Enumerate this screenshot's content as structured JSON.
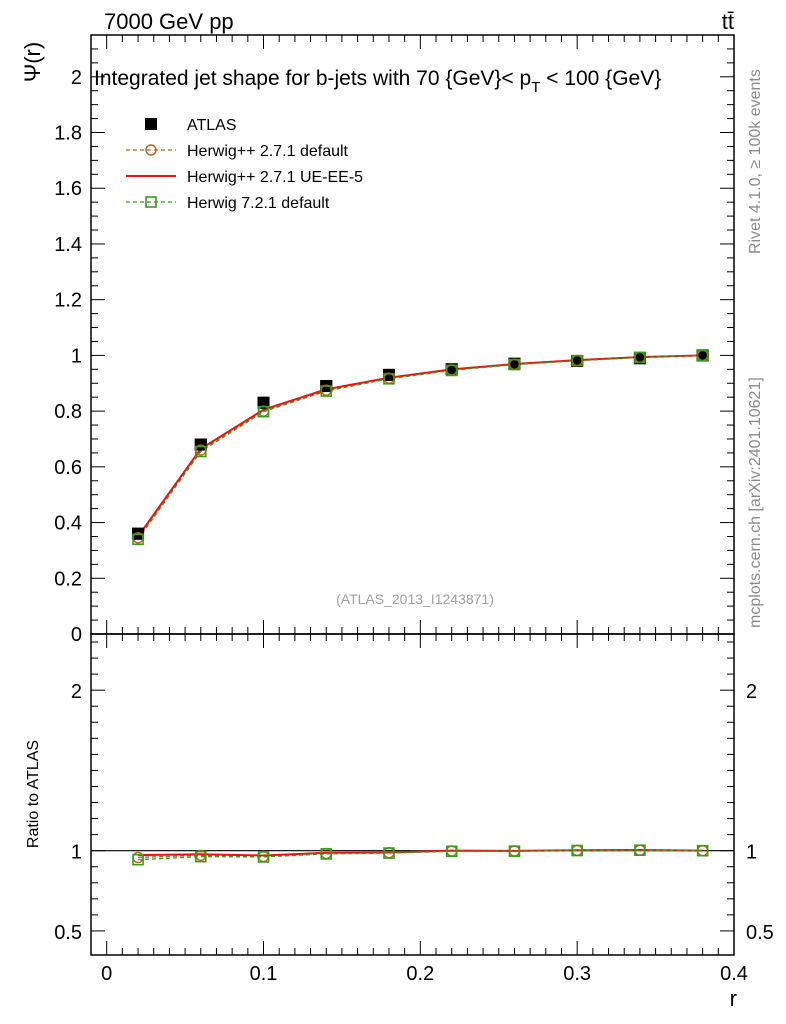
{
  "header": {
    "energy_label": "7000 GeV pp",
    "process_label": "tt̄",
    "rivet_label": "Rivet 4.1.0, ≥ 100k events",
    "site_label": "mcplots.cern.ch [arXiv:2401.10621]",
    "analysis_label": "(ATLAS_2013_I1243871)"
  },
  "chart_data": [
    {
      "type": "line",
      "title": "Integrated jet shape for b-jets with 70 {GeV}< p_T < 100 {GeV}",
      "title_main": "Integrated jet shape for b-jets with 70 {GeV}< p",
      "title_sub": "T",
      "title_end": " < 100 {GeV}",
      "ylabel": "Ψ(r)",
      "xlabel": "r",
      "xlim": [
        -0.01,
        0.4
      ],
      "ylim": [
        0.0,
        2.15
      ],
      "x_ticks": [
        0,
        0.1,
        0.2,
        0.3,
        0.4
      ],
      "x_tick_labels": [
        "0",
        "0.1",
        "0.2",
        "0.3",
        "0.4"
      ],
      "y_ticks": [
        0,
        0.2,
        0.4,
        0.6,
        0.8,
        1.0,
        1.2,
        1.4,
        1.6,
        1.8,
        2.0
      ],
      "y_tick_labels": [
        "0",
        "0.2",
        "0.4",
        "0.6",
        "0.8",
        "1",
        "1.2",
        "1.4",
        "1.6",
        "1.8",
        "2"
      ],
      "legend_position": "top-left",
      "x": [
        0.02,
        0.06,
        0.1,
        0.14,
        0.18,
        0.22,
        0.26,
        0.3,
        0.34,
        0.38
      ],
      "series": [
        {
          "name": "ATLAS",
          "marker": "filled-square",
          "color": "#000000",
          "values": [
            0.36,
            0.68,
            0.83,
            0.89,
            0.93,
            0.95,
            0.97,
            0.98,
            0.99,
            1.0
          ]
        },
        {
          "name": "Herwig++ 2.7.1 default",
          "marker": "open-circle",
          "dash": "dashed",
          "color": "#b5651d",
          "values": [
            0.345,
            0.66,
            0.8,
            0.875,
            0.918,
            0.948,
            0.968,
            0.982,
            0.993,
            1.0
          ]
        },
        {
          "name": "Herwig++ 2.7.1 UE-EE-5",
          "marker": "none",
          "dash": "solid",
          "color": "#ee1111",
          "values": [
            0.35,
            0.665,
            0.805,
            0.878,
            0.92,
            0.95,
            0.969,
            0.983,
            0.994,
            1.0
          ]
        },
        {
          "name": "Herwig 7.2.1 default",
          "marker": "open-square",
          "dash": "dashed",
          "color": "#3a9a1a",
          "values": [
            0.34,
            0.655,
            0.798,
            0.872,
            0.916,
            0.946,
            0.967,
            0.981,
            0.993,
            1.0
          ]
        }
      ]
    },
    {
      "type": "line",
      "title": "",
      "ylabel": "Ratio to ATLAS",
      "xlabel": "r",
      "xlim": [
        -0.01,
        0.4
      ],
      "ylim": [
        0.35,
        2.35
      ],
      "x_ticks": [
        0,
        0.1,
        0.2,
        0.3,
        0.4
      ],
      "y_ticks": [
        0.5,
        1,
        2
      ],
      "y_tick_labels": [
        "0.5",
        "1",
        "2"
      ],
      "reference_line": 1.0,
      "x": [
        0.02,
        0.06,
        0.1,
        0.14,
        0.18,
        0.22,
        0.26,
        0.3,
        0.34,
        0.38
      ],
      "series": [
        {
          "name": "Herwig++ 2.7.1 default",
          "marker": "open-circle",
          "dash": "dashed",
          "color": "#b5651d",
          "values": [
            0.958,
            0.971,
            0.964,
            0.983,
            0.987,
            0.998,
            0.998,
            1.002,
            1.003,
            1.0
          ]
        },
        {
          "name": "Herwig++ 2.7.1 UE-EE-5",
          "marker": "none",
          "dash": "solid",
          "color": "#ee1111",
          "values": [
            0.972,
            0.978,
            0.97,
            0.987,
            0.989,
            1.0,
            0.999,
            1.003,
            1.004,
            1.0
          ]
        },
        {
          "name": "Herwig 7.2.1 default",
          "marker": "open-square",
          "dash": "dashed",
          "color": "#3a9a1a",
          "values": [
            0.944,
            0.963,
            0.961,
            0.98,
            0.985,
            0.996,
            0.997,
            1.001,
            1.003,
            1.0
          ]
        }
      ]
    }
  ]
}
